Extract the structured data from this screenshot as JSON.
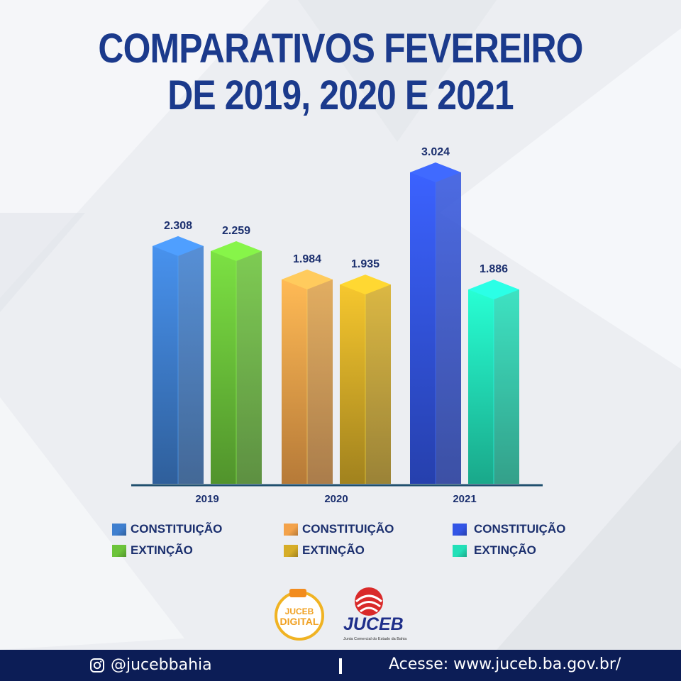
{
  "title": {
    "line1": "COMPARATIVOS FEVEREIRO",
    "line2": "DE 2019, 2020 E 2021"
  },
  "chart_data": {
    "type": "bar",
    "categories": [
      "2019",
      "2020",
      "2021"
    ],
    "bars": [
      {
        "category": "2019",
        "series": "CONSTITUIÇÃO",
        "value": 2308,
        "label": "2.308",
        "color": "#3f7fcf"
      },
      {
        "category": "2019",
        "series": "EXTINÇÃO",
        "value": 2259,
        "label": "2.259",
        "color": "#6cc43a"
      },
      {
        "category": "2020",
        "series": "CONSTITUIÇÃO",
        "value": 1984,
        "label": "1.984",
        "color": "#f3a24a"
      },
      {
        "category": "2020",
        "series": "EXTINÇÃO",
        "value": 1935,
        "label": "1.935",
        "color": "#d6ad28"
      },
      {
        "category": "2021",
        "series": "CONSTITUIÇÃO",
        "value": 3024,
        "label": "3.024",
        "color": "#3355e6"
      },
      {
        "category": "2021",
        "series": "EXTINÇÃO",
        "value": 1886,
        "label": "1.886",
        "color": "#22e0b8"
      }
    ],
    "ylim": [
      0,
      3200
    ],
    "grid": false
  },
  "legend": [
    {
      "label": "CONSTITUIÇÃO",
      "color": "#3f7fcf"
    },
    {
      "label": "EXTINÇÃO",
      "color": "#6cc43a"
    },
    {
      "label": "CONSTITUIÇÃO",
      "color": "#f3a24a"
    },
    {
      "label": "EXTINÇÃO",
      "color": "#d6ad28"
    },
    {
      "label": "CONSTITUIÇÃO",
      "color": "#3355e6"
    },
    {
      "label": "EXTINÇÃO",
      "color": "#22e0b8"
    }
  ],
  "logos": {
    "digital_line1": "JUCEB",
    "digital_line2": "DIGITAL",
    "juceb": "JUCEB",
    "juceb_sub": "Junta Comercial do Estado da Bahia"
  },
  "footer": {
    "instagram": "@jucebbahia",
    "site": "Acesse: www.juceb.ba.gov.br/"
  },
  "colors": {
    "title": "#1b3a8c",
    "footer_bg": "#0c1d56",
    "axis": "#1f4f6e"
  }
}
